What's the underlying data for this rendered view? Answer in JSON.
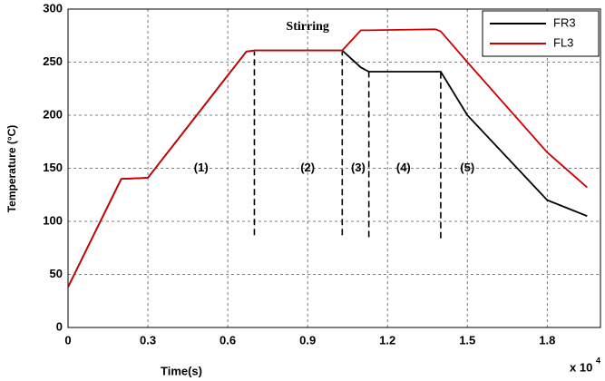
{
  "chart_data": {
    "type": "line",
    "x_label": "Time(s)",
    "y_label": "Temperature (°C)",
    "x_multiplier": "x 10",
    "x_multiplier_exp": "4",
    "x": [
      0,
      0.2,
      0.3,
      0.67,
      0.7,
      1.03,
      1.1,
      1.13,
      1.38,
      1.4,
      1.5,
      1.8,
      1.95
    ],
    "series": [
      {
        "name": "FR3",
        "color": "#000000",
        "values": [
          38,
          140,
          141,
          260,
          261,
          261,
          245,
          241,
          241,
          241,
          200,
          120,
          105
        ]
      },
      {
        "name": "FL3",
        "color": "#cc0000",
        "values": [
          38,
          140,
          141,
          260,
          261,
          261,
          280,
          280,
          281,
          279,
          250,
          165,
          132
        ]
      }
    ],
    "xlim": [
      0,
      2
    ],
    "xticks": [
      0,
      0.3,
      0.6,
      0.9,
      1.2,
      1.5,
      1.8
    ],
    "ylim": [
      0,
      300
    ],
    "yticks": [
      0,
      50,
      100,
      150,
      200,
      250,
      300
    ],
    "grid": true,
    "legend": "upper right",
    "phase_lines": [
      {
        "x": 0.7,
        "from": 87,
        "to": 260
      },
      {
        "x": 1.03,
        "from": 87,
        "to": 260
      },
      {
        "x": 1.13,
        "from": 85,
        "to": 241
      },
      {
        "x": 1.4,
        "from": 84,
        "to": 241
      }
    ],
    "annotations": [
      "Stirring",
      "(1)",
      "(2)",
      "(3)",
      "(4)",
      "(5)"
    ]
  }
}
